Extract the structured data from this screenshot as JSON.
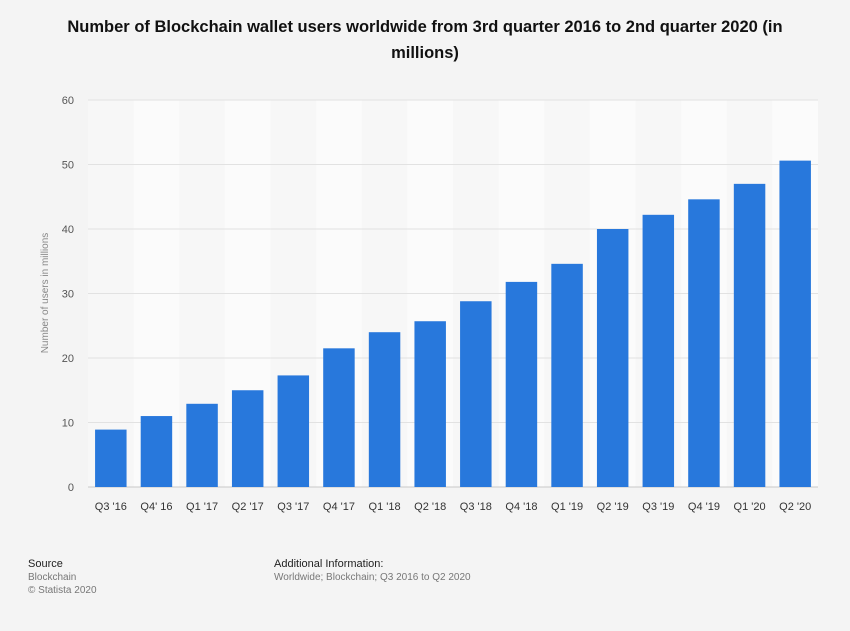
{
  "chart_data": {
    "type": "bar",
    "title": "Number of Blockchain wallet users worldwide from 3rd quarter 2016 to 2nd quarter 2020 (in millions)",
    "xlabel": "",
    "ylabel": "Number of users in millions",
    "ylim": [
      0,
      60
    ],
    "yticks": [
      0,
      10,
      20,
      30,
      40,
      50,
      60
    ],
    "grid": true,
    "bar_color": "#2878dc",
    "categories": [
      "Q3 '16",
      "Q4' 16",
      "Q1 '17",
      "Q2 '17",
      "Q3 '17",
      "Q4 '17",
      "Q1 '18",
      "Q2 '18",
      "Q3 '18",
      "Q4 '18",
      "Q1 '19",
      "Q2 '19",
      "Q3 '19",
      "Q4 '19",
      "Q1 '20",
      "Q2 '20"
    ],
    "values": [
      8.9,
      11,
      12.9,
      15,
      17.3,
      21.5,
      24,
      25.7,
      28.8,
      31.8,
      34.6,
      40,
      42.2,
      44.6,
      47,
      50.6
    ]
  },
  "footer": {
    "source_heading": "Source",
    "source_name": "Blockchain",
    "copyright": "© Statista 2020",
    "info_heading": "Additional Information:",
    "info_text": "Worldwide; Blockchain; Q3 2016 to Q2 2020"
  }
}
